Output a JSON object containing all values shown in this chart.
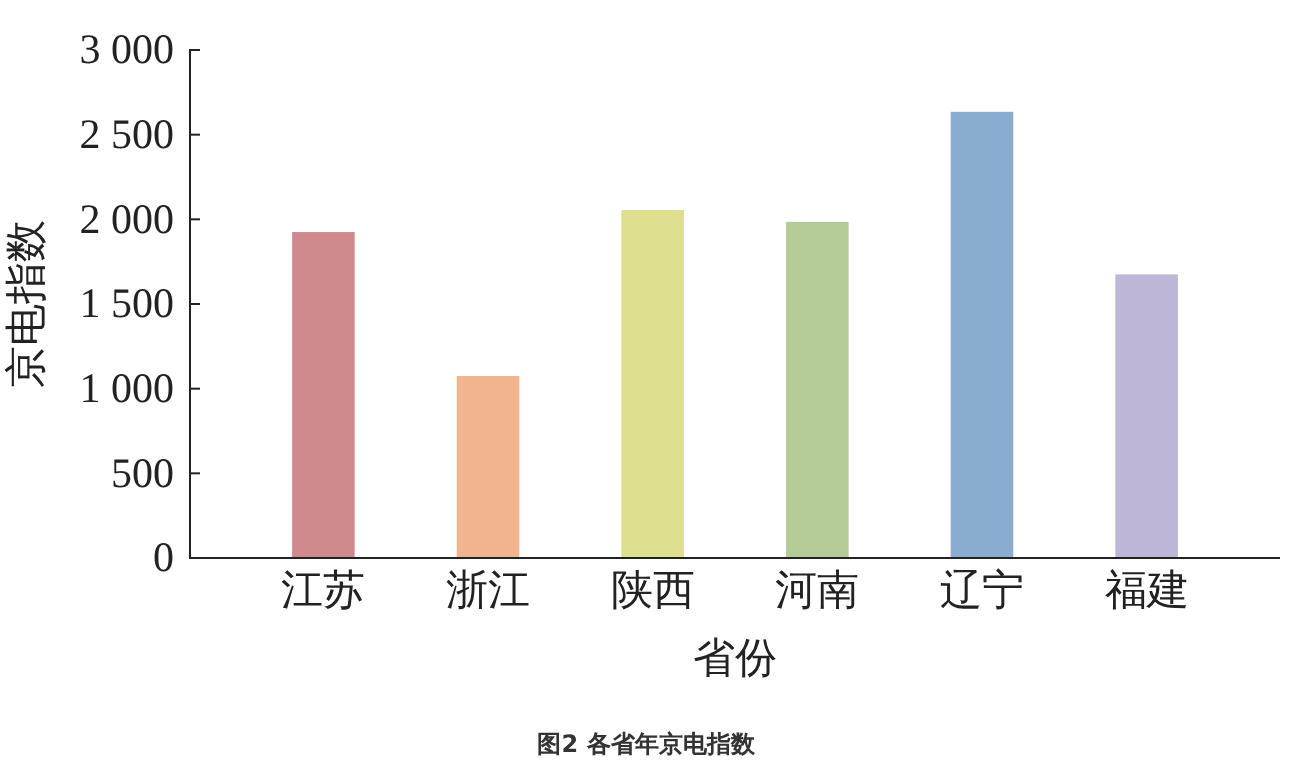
{
  "chart_data": {
    "type": "bar",
    "title": "图2  各省年京电指数",
    "xlabel": "省份",
    "ylabel": "京电指数",
    "categories": [
      "江苏",
      "浙江",
      "陕西",
      "河南",
      "辽宁",
      "福建"
    ],
    "values": [
      1925,
      1075,
      2055,
      1985,
      2635,
      1675
    ],
    "colors": [
      "#d08a8e",
      "#f2b48e",
      "#dfe08e",
      "#b4cb98",
      "#8aacd0",
      "#bdb6d6"
    ],
    "ylim": [
      0,
      3000
    ],
    "yticks": [
      0,
      500,
      {
        "value": 1000,
        "label": "1 000"
      },
      {
        "value": 1500,
        "label": "1 500"
      },
      {
        "value": 2000,
        "label": "2 000"
      },
      {
        "value": 2500,
        "label": "2 500"
      },
      {
        "value": 3000,
        "label": "3 000"
      }
    ],
    "grid": false
  }
}
